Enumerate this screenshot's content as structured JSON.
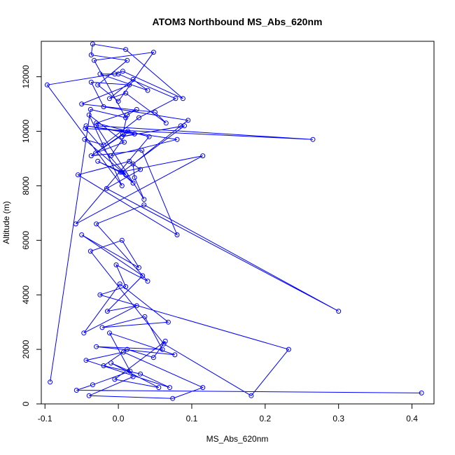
{
  "chart_data": {
    "type": "line",
    "title": "ATOM3 Northbound MS_Abs_620nm",
    "xlabel": "MS_Abs_620nm",
    "ylabel": "Altitude (m)",
    "xlim": [
      -0.105,
      0.43
    ],
    "ylim": [
      0,
      13300
    ],
    "x_ticks": [
      -0.1,
      0.0,
      0.1,
      0.2,
      0.3,
      0.4
    ],
    "x_tick_labels": [
      "-0.1",
      "0.0",
      "0.1",
      "0.2",
      "0.3",
      "0.4"
    ],
    "y_ticks": [
      0,
      2000,
      4000,
      6000,
      8000,
      10000,
      12000
    ],
    "y_tick_labels": [
      "0",
      "2000",
      "4000",
      "6000",
      "8000",
      "10000",
      "12000"
    ],
    "series_style": {
      "color": "#0000ff",
      "marker": "open-circle"
    },
    "series": [
      {
        "x": [
          0.413,
          -0.057,
          -0.035,
          0.016,
          -0.01,
          0.055,
          -0.005,
          0.064,
          0.048,
          0.012,
          -0.02,
          0.03,
          0.07,
          -0.044,
          0.007,
          0.115,
          0.074,
          -0.04,
          0.02,
          -0.012,
          0.077,
          -0.03,
          0.06,
          0.036,
          -0.022,
          0.068,
          0.002,
          -0.047,
          0.025,
          -0.015,
          0.033,
          -0.05,
          0.028,
          0.005,
          -0.038,
          0.062,
          0.181,
          0.232,
          -0.025,
          0.01,
          -0.003,
          0.04,
          -0.03,
          0.035,
          0.3,
          -0.016,
          0.03,
          0.015,
          -0.055,
          0.08,
          0.032,
          -0.037,
          0.006,
          0.012,
          0.025,
          -0.03,
          0.042,
          -0.058,
          0.115,
          0.003,
          0.02,
          -0.045,
          0.265,
          -0.03,
          0.035,
          0.022,
          0.02,
          0.085,
          0.095,
          -0.02,
          -0.037,
          0.015,
          -0.05,
          0.05,
          0.065,
          0.01,
          -0.012,
          0.02,
          0.04,
          -0.025,
          0.0,
          0.078,
          0.028,
          -0.02,
          -0.046,
          0.01,
          -0.028,
          0.005,
          0.09,
          0.005,
          0.022,
          -0.044,
          0.08,
          -0.01,
          0.013,
          -0.031,
          0.008,
          -0.04,
          0.005,
          -0.097,
          -0.005,
          0.006,
          0.088,
          0.01,
          -0.035,
          -0.037,
          0.012,
          -0.028,
          0.0,
          0.048,
          -0.033,
          0.01,
          -0.038,
          -0.093
        ],
        "y": [
          400,
          500,
          700,
          1200,
          1500,
          600,
          900,
          2300,
          1700,
          2000,
          1400,
          1100,
          600,
          1600,
          1900,
          600,
          200,
          300,
          1000,
          2600,
          1800,
          2100,
          2000,
          3200,
          2800,
          3000,
          4400,
          2600,
          3600,
          3400,
          4700,
          6200,
          5000,
          6000,
          5600,
          2200,
          300,
          2000,
          4000,
          4300,
          5100,
          4500,
          6600,
          7300,
          3400,
          7900,
          8600,
          8900,
          8400,
          6200,
          9300,
          9100,
          9900,
          10600,
          10800,
          10300,
          9800,
          6600,
          9100,
          8500,
          8100,
          10100,
          9700,
          10200,
          7500,
          8300,
          8800,
          10200,
          10400,
          10900,
          11800,
          11700,
          11000,
          10700,
          10300,
          11400,
          11200,
          11900,
          11500,
          12100,
          12100,
          11200,
          10500,
          9500,
          9700,
          8400,
          8900,
          8500,
          10200,
          9800,
          9900,
          10200,
          9700,
          9100,
          10000,
          9200,
          9600,
          10600,
          8000,
          11700,
          12100,
          12200,
          11200,
          13000,
          13200,
          12800,
          12600,
          11700,
          11100,
          12900,
          12600,
          10500,
          10800,
          800
        ]
      }
    ]
  }
}
